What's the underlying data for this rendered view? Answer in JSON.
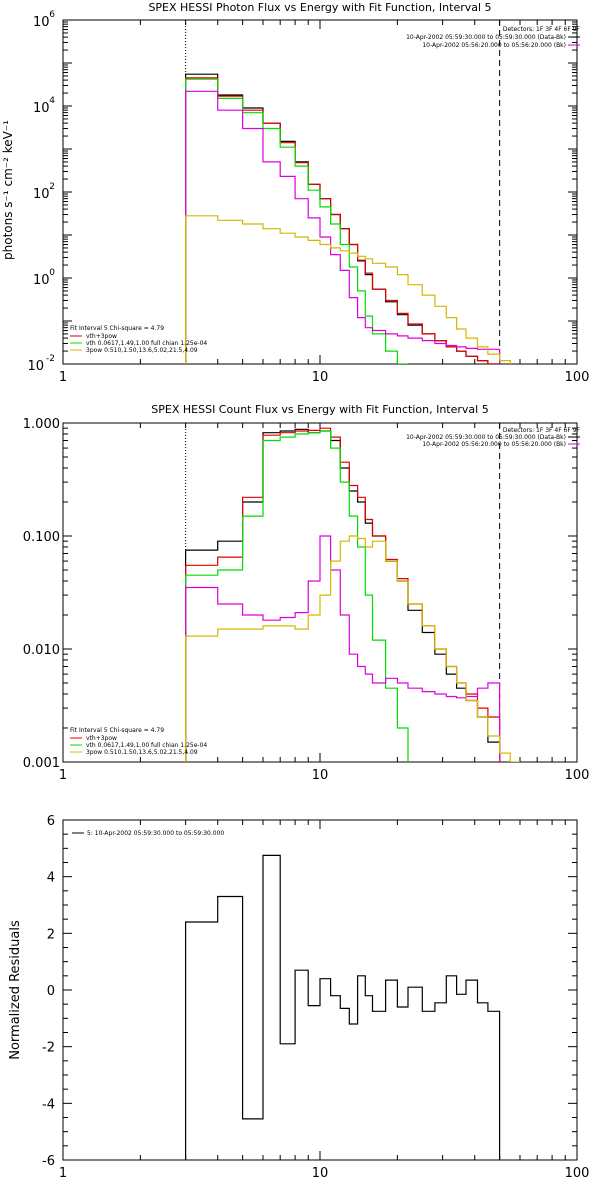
{
  "colors": {
    "black": "#000000",
    "red": "#e00000",
    "green": "#00dd00",
    "magenta": "#dd00dd",
    "yellow": "#d4b800"
  },
  "chart_data": [
    {
      "type": "line",
      "title": "SPEX HESSI Photon Flux vs Energy with Fit Function, Interval 5",
      "xlabel": "",
      "ylabel": "photons s⁻¹ cm⁻² keV⁻¹",
      "xscale": "log",
      "yscale": "log",
      "xlim": [
        1,
        100
      ],
      "ylim": [
        0.01,
        1000000
      ],
      "x_ticks": [
        "1",
        "10",
        "100"
      ],
      "y_ticks": [
        {
          "base": "10",
          "exp": "-2",
          "value": 0.01
        },
        {
          "base": "10",
          "exp": "0",
          "value": 1
        },
        {
          "base": "10",
          "exp": "2",
          "value": 100
        },
        {
          "base": "10",
          "exp": "4",
          "value": 10000
        },
        {
          "base": "10",
          "exp": "6",
          "value": 1000000
        }
      ],
      "vlines": [
        {
          "x": 3,
          "style": "dotted"
        },
        {
          "x": 50,
          "style": "dashed"
        }
      ],
      "legend_tr": {
        "header": "Detectors: 1F 3F 4F 6F 9F",
        "entries": [
          {
            "text": "10-Apr-2002 05:59:30.000 to 05:59:30.000 (Data-Bk)",
            "color": "#000000"
          },
          {
            "text": "10-Apr-2002 05:56:20.000 to 05:56:20.000 (Bk)",
            "color": "#dd00dd"
          }
        ]
      },
      "legend_bl": {
        "header": "Fit Interval 5   Chi-square = 4.79",
        "entries": [
          {
            "text": "vth+3pow",
            "color": "#e00000"
          },
          {
            "text": "vth 0.0617,1.49,1.00  full chian 1.25e-04",
            "color": "#00dd00"
          },
          {
            "text": "3pow 0.510,1.50,13.6,5.02,21.5,4.09",
            "color": "#d4b800"
          }
        ]
      },
      "series": [
        {
          "color": "#000000",
          "edges": [
            3,
            4,
            5,
            6,
            7,
            8,
            9,
            10,
            11,
            12,
            13,
            14,
            15,
            16,
            18,
            20,
            22,
            25,
            28,
            31,
            34,
            37,
            41,
            45,
            50
          ],
          "values": [
            55000,
            18000,
            9000,
            4000,
            1500,
            500,
            150,
            70,
            30,
            14,
            6,
            2.5,
            1.2,
            0.55,
            0.28,
            0.14,
            0.08,
            0.05,
            0.035,
            0.025,
            0.02,
            0.015,
            0.012,
            0.009
          ]
        },
        {
          "color": "#e00000",
          "edges": [
            3,
            4,
            5,
            6,
            7,
            8,
            9,
            10,
            11,
            12,
            13,
            14,
            15,
            16,
            18,
            20,
            22,
            25,
            28,
            31,
            34,
            37,
            41,
            45,
            50
          ],
          "values": [
            45000,
            17000,
            8000,
            4000,
            1400,
            480,
            150,
            70,
            30,
            14,
            6,
            2.6,
            1.3,
            0.55,
            0.3,
            0.15,
            0.085,
            0.05,
            0.035,
            0.025,
            0.02,
            0.015,
            0.012,
            0.009
          ]
        },
        {
          "color": "#00dd00",
          "edges": [
            3,
            4,
            5,
            6,
            7,
            8,
            9,
            10,
            11,
            12,
            13,
            14,
            15,
            16,
            18,
            20,
            22
          ],
          "values": [
            42000,
            15000,
            7000,
            3000,
            1100,
            400,
            110,
            45,
            18,
            6,
            1.8,
            0.5,
            0.13,
            0.05,
            0.02,
            0.01
          ]
        },
        {
          "color": "#dd00dd",
          "edges": [
            3,
            4,
            5,
            6,
            7,
            8,
            9,
            10,
            11,
            12,
            13,
            14,
            15,
            16,
            18,
            20,
            22,
            25,
            28,
            31,
            34,
            37,
            41,
            45,
            50
          ],
          "values": [
            22000,
            8000,
            3000,
            500,
            230,
            70,
            25,
            9,
            3.5,
            1.5,
            0.35,
            0.12,
            0.07,
            0.06,
            0.05,
            0.045,
            0.04,
            0.035,
            0.03,
            0.027,
            0.025,
            0.023,
            0.022,
            0.022
          ]
        },
        {
          "color": "#d4b800",
          "edges": [
            3,
            4,
            5,
            6,
            7,
            8,
            9,
            10,
            11,
            12,
            13,
            14,
            15,
            16,
            18,
            20,
            22,
            25,
            28,
            31,
            34,
            37,
            41,
            45,
            50,
            55
          ],
          "values": [
            28,
            22,
            18,
            14,
            11,
            9,
            7.5,
            6,
            5,
            4.3,
            3.8,
            3.2,
            2.8,
            2.2,
            1.8,
            1.2,
            0.7,
            0.4,
            0.22,
            0.12,
            0.065,
            0.04,
            0.025,
            0.017,
            0.012
          ]
        }
      ]
    },
    {
      "type": "line",
      "title": "SPEX HESSI Count Flux vs Energy with Fit Function, Interval 5",
      "xlabel": "",
      "ylabel": "",
      "xscale": "log",
      "yscale": "log",
      "xlim": [
        1,
        100
      ],
      "ylim": [
        0.001,
        1.0
      ],
      "x_ticks": [
        "1",
        "10",
        "100"
      ],
      "y_ticks": [
        {
          "label": "1.000",
          "value": 1.0
        },
        {
          "label": "0.100",
          "value": 0.1
        },
        {
          "label": "0.010",
          "value": 0.01
        },
        {
          "label": "0.001",
          "value": 0.001
        }
      ],
      "vlines": [
        {
          "x": 3,
          "style": "dotted"
        },
        {
          "x": 50,
          "style": "dashed"
        }
      ],
      "legend_tr": {
        "header": "Detectors: 1F 3F 4F 6F 9F",
        "entries": [
          {
            "text": "10-Apr-2002 05:59:30.000 to 05:59:30.000 (Data-Bk)",
            "color": "#000000"
          },
          {
            "text": "10-Apr-2002 05:56:20.000 to 05:56:20.000 (Bk)",
            "color": "#dd00dd"
          }
        ]
      },
      "legend_bl": {
        "header": "Fit Interval 5   Chi-square = 4.79",
        "entries": [
          {
            "text": "vth+3pow",
            "color": "#e00000"
          },
          {
            "text": "vth 0.0617,1.49,1.00  full chian 1.25e-04",
            "color": "#00dd00"
          },
          {
            "text": "3pow 0.510,1.50,13.6,5.02,21.5,4.09",
            "color": "#d4b800"
          }
        ]
      },
      "series": [
        {
          "color": "#000000",
          "edges": [
            3,
            4,
            5,
            6,
            7,
            8,
            9,
            10,
            11,
            12,
            13,
            14,
            15,
            16,
            18,
            20,
            22,
            25,
            28,
            31,
            34,
            37,
            41,
            45,
            50
          ],
          "values": [
            0.075,
            0.09,
            0.2,
            0.82,
            0.85,
            0.88,
            0.82,
            0.85,
            0.7,
            0.4,
            0.25,
            0.2,
            0.13,
            0.1,
            0.06,
            0.04,
            0.022,
            0.014,
            0.009,
            0.006,
            0.0045,
            0.0035,
            0.0025,
            0.0015
          ]
        },
        {
          "color": "#e00000",
          "edges": [
            3,
            4,
            5,
            6,
            7,
            8,
            9,
            10,
            11,
            12,
            13,
            14,
            15,
            16,
            18,
            20,
            22,
            25,
            28,
            31,
            34,
            37,
            41,
            45,
            50
          ],
          "values": [
            0.055,
            0.065,
            0.22,
            0.78,
            0.82,
            0.85,
            0.86,
            0.9,
            0.75,
            0.45,
            0.28,
            0.22,
            0.14,
            0.1,
            0.062,
            0.042,
            0.025,
            0.016,
            0.01,
            0.007,
            0.005,
            0.004,
            0.003,
            0.0025
          ]
        },
        {
          "color": "#00dd00",
          "edges": [
            3,
            4,
            5,
            6,
            7,
            8,
            9,
            10,
            11,
            12,
            13,
            14,
            15,
            16,
            18,
            20,
            22
          ],
          "values": [
            0.045,
            0.05,
            0.15,
            0.7,
            0.75,
            0.8,
            0.82,
            0.85,
            0.6,
            0.3,
            0.15,
            0.08,
            0.03,
            0.012,
            0.0045,
            0.002
          ]
        },
        {
          "color": "#dd00dd",
          "edges": [
            3,
            4,
            5,
            6,
            7,
            8,
            9,
            10,
            11,
            12,
            13,
            14,
            15,
            16,
            18,
            20,
            22,
            25,
            28,
            31,
            34,
            37,
            41,
            45,
            50
          ],
          "values": [
            0.035,
            0.025,
            0.02,
            0.018,
            0.019,
            0.021,
            0.04,
            0.1,
            0.05,
            0.02,
            0.009,
            0.007,
            0.006,
            0.005,
            0.0055,
            0.005,
            0.0045,
            0.0042,
            0.004,
            0.0038,
            0.0037,
            0.0038,
            0.0045,
            0.005
          ]
        },
        {
          "color": "#d4b800",
          "edges": [
            3,
            4,
            5,
            6,
            7,
            8,
            9,
            10,
            11,
            12,
            13,
            14,
            15,
            16,
            18,
            20,
            22,
            25,
            28,
            31,
            34,
            37,
            41,
            45,
            50,
            55,
            60
          ],
          "values": [
            0.013,
            0.015,
            0.015,
            0.016,
            0.016,
            0.015,
            0.02,
            0.03,
            0.06,
            0.09,
            0.1,
            0.095,
            0.08,
            0.09,
            0.06,
            0.04,
            0.025,
            0.016,
            0.01,
            0.007,
            0.005,
            0.0035,
            0.0025,
            0.0017,
            0.0012,
            0.0008
          ]
        }
      ]
    },
    {
      "type": "line",
      "title": "",
      "xlabel": "",
      "ylabel": "Normalized Residuals",
      "xscale": "log",
      "yscale": "linear",
      "xlim": [
        1,
        100
      ],
      "ylim": [
        -6,
        6
      ],
      "x_ticks": [
        "1",
        "10",
        "100"
      ],
      "y_ticks": [
        "6",
        "4",
        "2",
        "0",
        "-2",
        "-4",
        "-6"
      ],
      "legend_tl": {
        "entries": [
          {
            "text": "5: 10-Apr-2002 05:59:30.000 to 05:59:30.000",
            "color": "#000000"
          }
        ]
      },
      "series": [
        {
          "color": "#000000",
          "edges": [
            3,
            4,
            5,
            6,
            7,
            8,
            9,
            10,
            11,
            12,
            13,
            14,
            15,
            16,
            18,
            20,
            22,
            25,
            28,
            31,
            34,
            37,
            41,
            45,
            50
          ],
          "values": [
            2.4,
            3.3,
            -4.55,
            4.75,
            -1.9,
            0.7,
            -0.55,
            0.4,
            -0.2,
            -0.65,
            -1.2,
            0.5,
            -0.2,
            -0.75,
            0.35,
            -0.6,
            0.1,
            -0.75,
            -0.45,
            0.5,
            -0.15,
            0.35,
            -0.45,
            -0.75
          ]
        }
      ]
    }
  ]
}
